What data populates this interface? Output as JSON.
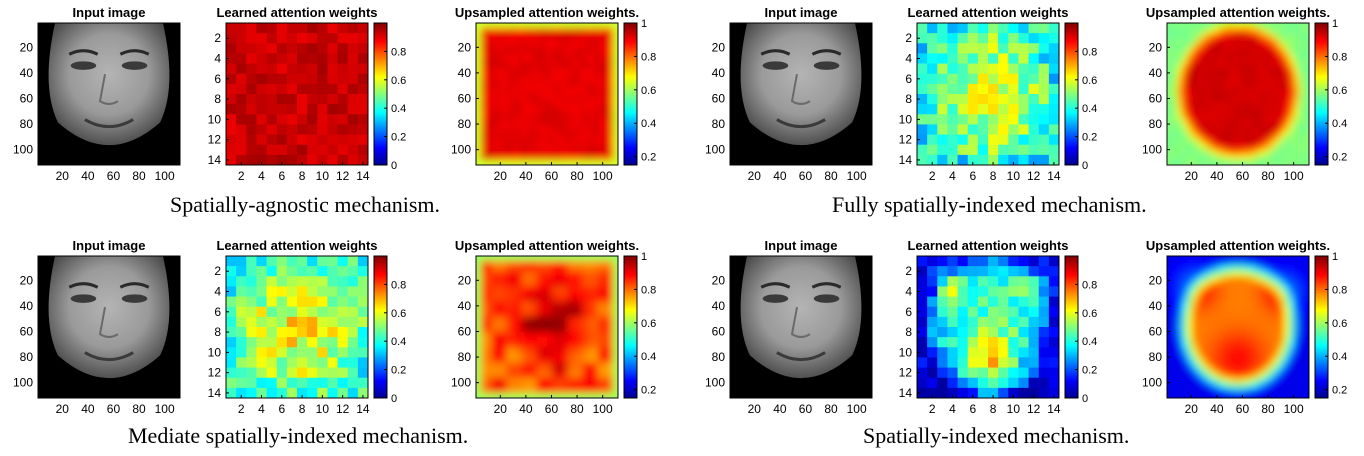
{
  "panel_titles": {
    "input": "Input image",
    "learned": "Learned attention weights",
    "upsampled": "Upsampled attention weights."
  },
  "colormap": {
    "name": "jet",
    "stops": [
      "#00008f",
      "#0000ff",
      "#00ffff",
      "#ffff00",
      "#ff0000",
      "#800000"
    ]
  },
  "captions": [
    "Spatially-agnostic mechanism.",
    "Fully spatially-indexed mechanism.",
    "Mediate spatially-indexed mechanism.",
    "Spatially-indexed mechanism."
  ],
  "chart_data": [
    {
      "type": "heatmap",
      "mechanism": "Spatially-agnostic mechanism.",
      "panel": "Input image",
      "image": "grayscale face",
      "xticks": [
        20,
        40,
        60,
        80,
        100
      ],
      "yticks": [
        20,
        40,
        60,
        80,
        100
      ],
      "xlim": [
        1,
        112
      ],
      "ylim": [
        1,
        112
      ]
    },
    {
      "type": "heatmap",
      "mechanism": "Spatially-agnostic mechanism.",
      "panel": "Learned attention weights",
      "grid_size": [
        14,
        14
      ],
      "xticks": [
        2,
        4,
        6,
        8,
        10,
        12,
        14
      ],
      "yticks": [
        2,
        4,
        6,
        8,
        10,
        12,
        14
      ],
      "colorbar_ticks": [
        0,
        0.2,
        0.4,
        0.6,
        0.8
      ],
      "clim": [
        0,
        1
      ],
      "value_range": [
        0.85,
        1.0
      ],
      "pattern": "uniform"
    },
    {
      "type": "heatmap",
      "mechanism": "Spatially-agnostic mechanism.",
      "panel": "Upsampled attention weights.",
      "xticks": [
        20,
        40,
        60,
        80,
        100
      ],
      "yticks": [
        20,
        40,
        60,
        80,
        100
      ],
      "colorbar_ticks": [
        0.2,
        0.4,
        0.6,
        0.8,
        1
      ],
      "clim": [
        0.15,
        1
      ],
      "pattern": "uniform"
    },
    {
      "type": "heatmap",
      "mechanism": "Fully spatially-indexed mechanism.",
      "panel": "Input image",
      "image": "grayscale face",
      "xticks": [
        20,
        40,
        60,
        80,
        100
      ],
      "yticks": [
        20,
        40,
        60,
        80,
        100
      ],
      "xlim": [
        1,
        112
      ],
      "ylim": [
        1,
        112
      ]
    },
    {
      "type": "heatmap",
      "mechanism": "Fully spatially-indexed mechanism.",
      "panel": "Learned attention weights",
      "grid_size": [
        14,
        14
      ],
      "xticks": [
        2,
        4,
        6,
        8,
        10,
        12,
        14
      ],
      "yticks": [
        2,
        4,
        6,
        8,
        10,
        12,
        14
      ],
      "colorbar_ticks": [
        0,
        0.2,
        0.4,
        0.6,
        0.8
      ],
      "clim": [
        0,
        1
      ],
      "value_range": [
        0.3,
        0.65
      ],
      "pattern": "face"
    },
    {
      "type": "heatmap",
      "mechanism": "Fully spatially-indexed mechanism.",
      "panel": "Upsampled attention weights.",
      "xticks": [
        20,
        40,
        60,
        80,
        100
      ],
      "yticks": [
        20,
        40,
        60,
        80,
        100
      ],
      "colorbar_ticks": [
        0.2,
        0.4,
        0.6,
        0.8,
        1
      ],
      "clim": [
        0.15,
        1
      ],
      "pattern": "face"
    },
    {
      "type": "heatmap",
      "mechanism": "Mediate spatially-indexed mechanism.",
      "panel": "Input image",
      "image": "grayscale face",
      "xticks": [
        20,
        40,
        60,
        80,
        100
      ],
      "yticks": [
        20,
        40,
        60,
        80,
        100
      ],
      "xlim": [
        1,
        112
      ],
      "ylim": [
        1,
        112
      ]
    },
    {
      "type": "heatmap",
      "mechanism": "Mediate spatially-indexed mechanism.",
      "panel": "Learned attention weights",
      "grid_size": [
        14,
        14
      ],
      "xticks": [
        2,
        4,
        6,
        8,
        10,
        12,
        14
      ],
      "yticks": [
        2,
        4,
        6,
        8,
        10,
        12,
        14
      ],
      "colorbar_ticks": [
        0,
        0.2,
        0.4,
        0.6,
        0.8
      ],
      "clim": [
        0,
        1
      ],
      "value_range": [
        0.35,
        0.65
      ],
      "pattern": "center"
    },
    {
      "type": "heatmap",
      "mechanism": "Mediate spatially-indexed mechanism.",
      "panel": "Upsampled attention weights.",
      "xticks": [
        20,
        40,
        60,
        80,
        100
      ],
      "yticks": [
        20,
        40,
        60,
        80,
        100
      ],
      "colorbar_ticks": [
        0.2,
        0.4,
        0.6,
        0.8,
        1
      ],
      "clim": [
        0.15,
        1
      ],
      "pattern": "center"
    },
    {
      "type": "heatmap",
      "mechanism": "Spatially-indexed mechanism.",
      "panel": "Input image",
      "image": "grayscale face",
      "xticks": [
        20,
        40,
        60,
        80,
        100
      ],
      "yticks": [
        20,
        40,
        60,
        80,
        100
      ],
      "xlim": [
        1,
        112
      ],
      "ylim": [
        1,
        112
      ]
    },
    {
      "type": "heatmap",
      "mechanism": "Spatially-indexed mechanism.",
      "panel": "Learned attention weights",
      "grid_size": [
        14,
        14
      ],
      "xticks": [
        2,
        4,
        6,
        8,
        10,
        12,
        14
      ],
      "yticks": [
        2,
        4,
        6,
        8,
        10,
        12,
        14
      ],
      "colorbar_ticks": [
        0,
        0.2,
        0.4,
        0.6,
        0.8
      ],
      "clim": [
        0,
        1
      ],
      "value_range": [
        0.1,
        0.8
      ],
      "pattern": "face-strong"
    },
    {
      "type": "heatmap",
      "mechanism": "Spatially-indexed mechanism.",
      "panel": "Upsampled attention weights.",
      "xticks": [
        20,
        40,
        60,
        80,
        100
      ],
      "yticks": [
        20,
        40,
        60,
        80,
        100
      ],
      "colorbar_ticks": [
        0.2,
        0.4,
        0.6,
        0.8,
        1
      ],
      "clim": [
        0.15,
        1
      ],
      "pattern": "face-strong"
    }
  ]
}
